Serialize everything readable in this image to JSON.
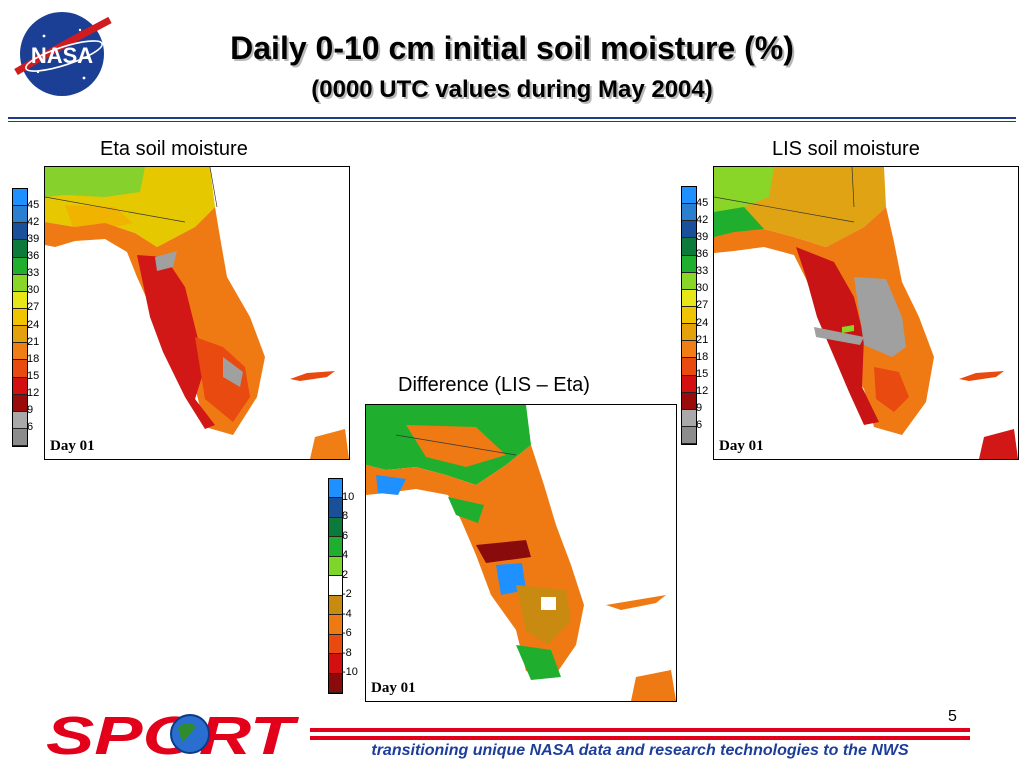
{
  "title": "Daily 0-10 cm initial soil moisture (%)",
  "subtitle": "(0000 UTC values during May 2004)",
  "panels": {
    "eta": {
      "caption": "Eta soil moisture",
      "day_label": "Day 01"
    },
    "lis": {
      "caption": "LIS soil moisture",
      "day_label": "Day 01"
    },
    "diff": {
      "caption": "Difference (LIS – Eta)",
      "day_label": "Day 01"
    }
  },
  "moisture_scale": {
    "labels": [
      "45",
      "42",
      "39",
      "36",
      "33",
      "30",
      "27",
      "24",
      "21",
      "18",
      "15",
      "12",
      "9",
      "6"
    ],
    "colors": [
      "#1e90ff",
      "#2b7fd0",
      "#1a4f9a",
      "#0b7a3b",
      "#1fae2e",
      "#8ad628",
      "#e6e619",
      "#f0c400",
      "#e5a10c",
      "#f07e14",
      "#e84a10",
      "#d40f0f",
      "#9a0c0c",
      "#a9a9a9",
      "#8c8c8c"
    ]
  },
  "diff_scale": {
    "labels": [
      "10",
      "8",
      "6",
      "4",
      "2",
      "-2",
      "-4",
      "-6",
      "-8",
      "-10"
    ],
    "colors": [
      "#1e90ff",
      "#1a4f9a",
      "#0b7a3b",
      "#1fae2e",
      "#7fd62b",
      "#ffffff",
      "#c98a12",
      "#ef7a14",
      "#e84a10",
      "#d40f0f",
      "#8a0b0b"
    ]
  },
  "logo_text": "NASA",
  "sport_logo_text": "SPORT",
  "page_number": "5",
  "tagline": "transitioning unique NASA data and research technologies to the NWS"
}
